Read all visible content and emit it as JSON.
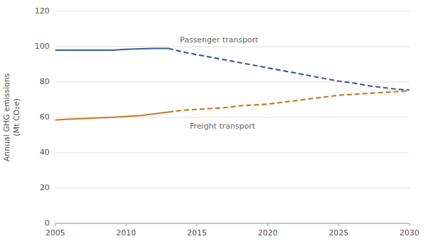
{
  "chart_data": {
    "type": "line",
    "ylabel": "Annual GHG emissions\n(Mt CO₂e)",
    "series": [
      {
        "x": [
          2005,
          2006,
          2007,
          2008,
          2009,
          2010,
          2011,
          2012,
          2013
        ],
        "values": [
          98.0,
          98.0,
          98.0,
          98.0,
          98.0,
          98.5,
          98.8,
          99.0,
          99.0
        ],
        "color": "#3a5c9c",
        "line_style": "solid"
      },
      {
        "x": [
          2013,
          2014,
          2015,
          2016,
          2017,
          2018,
          2019,
          2020,
          2021,
          2022,
          2023,
          2024,
          2025,
          2026,
          2027,
          2028,
          2029,
          2030
        ],
        "values": [
          99.0,
          97.0,
          95.5,
          94.0,
          92.5,
          91.0,
          89.5,
          88.0,
          86.5,
          85.0,
          83.5,
          82.0,
          80.5,
          79.5,
          78.0,
          77.0,
          76.0,
          75.5
        ],
        "color": "#3a5c9c",
        "line_style": "dashed"
      },
      {
        "x": [
          2005,
          2006,
          2007,
          2008,
          2009,
          2010,
          2011,
          2012,
          2013
        ],
        "values": [
          58.5,
          59.0,
          59.3,
          59.7,
          60.0,
          60.5,
          61.0,
          62.0,
          63.0
        ],
        "color": "#c97820",
        "line_style": "solid"
      },
      {
        "x": [
          2013,
          2014,
          2015,
          2016,
          2017,
          2018,
          2019,
          2020,
          2021,
          2022,
          2023,
          2024,
          2025,
          2026,
          2027,
          2028,
          2029,
          2030
        ],
        "values": [
          63.0,
          64.0,
          64.5,
          65.0,
          65.5,
          66.5,
          67.0,
          67.5,
          68.5,
          69.5,
          70.5,
          71.5,
          72.5,
          73.0,
          73.5,
          74.0,
          74.5,
          75.0
        ],
        "color": "#c97820",
        "line_style": "dashed"
      }
    ],
    "annotations": [
      {
        "text": "Passenger transport",
        "x": 2013.8,
        "y": 101.5
      },
      {
        "text": "Freight transport",
        "x": 2014.5,
        "y": 57.5
      }
    ],
    "xlim": [
      2005,
      2030
    ],
    "ylim": [
      0,
      120
    ],
    "xticks": [
      2005,
      2010,
      2015,
      2020,
      2025,
      2030
    ],
    "yticks": [
      0,
      20,
      40,
      60,
      80,
      100,
      120
    ],
    "grid": true
  }
}
